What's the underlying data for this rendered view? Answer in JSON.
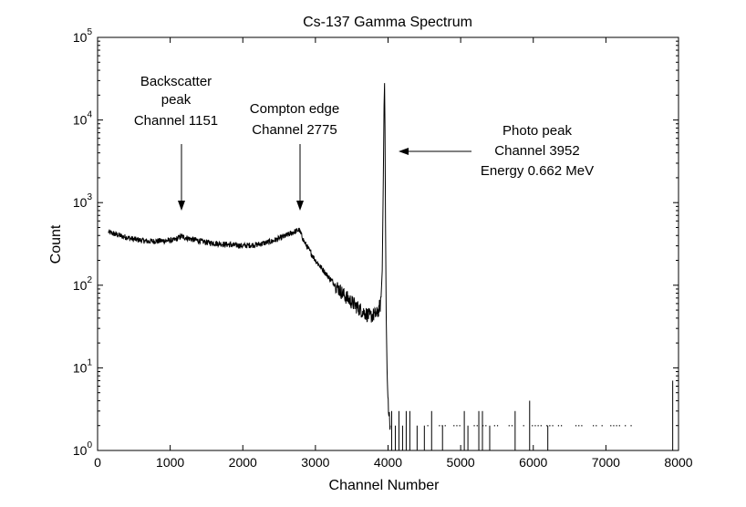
{
  "chart_data": {
    "type": "line",
    "title": "Cs-137 Gamma Spectrum",
    "xlabel": "Channel Number",
    "ylabel": "Count",
    "xlim": [
      0,
      8000
    ],
    "ylim": [
      1,
      100000
    ],
    "yscale": "log",
    "grid": false,
    "legend": "none",
    "line_color": "#000000",
    "x_ticks": [
      "0",
      "1000",
      "2000",
      "3000",
      "4000",
      "5000",
      "6000",
      "7000",
      "8000"
    ],
    "y_ticks": [
      {
        "base": "10",
        "exp": "0"
      },
      {
        "base": "10",
        "exp": "1"
      },
      {
        "base": "10",
        "exp": "2"
      },
      {
        "base": "10",
        "exp": "3"
      },
      {
        "base": "10",
        "exp": "4"
      },
      {
        "base": "10",
        "exp": "5"
      }
    ],
    "series": [
      {
        "x": [
          150,
          300,
          500,
          700,
          900,
          1050,
          1151,
          1300,
          1500,
          1800,
          2000,
          2200,
          2400,
          2600,
          2775,
          2850,
          3000,
          3200,
          3400,
          3600,
          3750,
          3850,
          3900,
          3920,
          3935,
          3945,
          3952,
          3958,
          3965,
          3975,
          3990,
          4010,
          4030
        ],
        "y": [
          440,
          400,
          360,
          340,
          345,
          350,
          390,
          360,
          330,
          310,
          300,
          310,
          340,
          400,
          470,
          330,
          200,
          120,
          75,
          52,
          42,
          45,
          60,
          150,
          2000,
          15000,
          28000,
          8000,
          600,
          40,
          6,
          3,
          2
        ]
      }
    ],
    "sparse_counts": {
      "x": [
        4050,
        4100,
        4150,
        4200,
        4250,
        4300,
        4400,
        4500,
        4600,
        4750,
        5050,
        5100,
        5250,
        5300,
        5400,
        5750,
        5950,
        6200,
        7920
      ],
      "y": [
        3,
        2,
        3,
        2,
        3,
        3,
        2,
        2,
        3,
        2,
        3,
        2,
        3,
        3,
        2,
        3,
        4,
        2,
        7
      ]
    },
    "annotations": [
      {
        "lines": [
          "Backscatter",
          "peak",
          "Channel 1151"
        ],
        "x": 1151
      },
      {
        "lines": [
          "Compton edge",
          "Channel 2775"
        ],
        "x": 2775
      },
      {
        "lines": [
          "Photo peak",
          "Channel 3952",
          "Energy 0.662 MeV"
        ],
        "x": 3952
      }
    ]
  }
}
